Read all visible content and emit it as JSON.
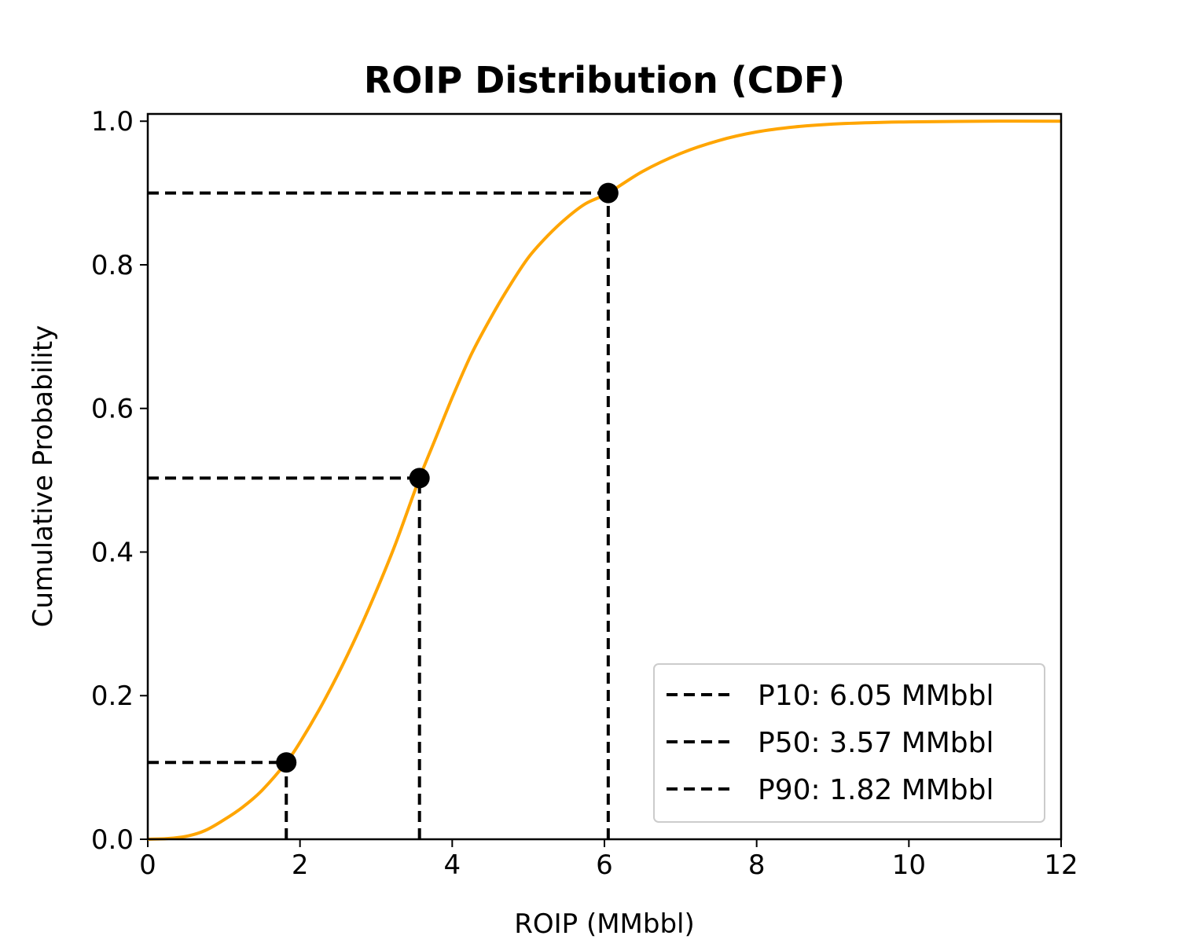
{
  "chart_data": {
    "type": "line",
    "title": "ROIP Distribution (CDF)",
    "xlabel": "ROIP (MMbbl)",
    "ylabel": "Cumulative Probability",
    "xlim": [
      0,
      12
    ],
    "ylim": [
      0,
      1
    ],
    "xticks": [
      0,
      2,
      4,
      6,
      8,
      10,
      12
    ],
    "yticks": [
      0.0,
      0.2,
      0.4,
      0.6,
      0.8,
      1.0
    ],
    "xtick_labels": [
      "0",
      "2",
      "4",
      "6",
      "8",
      "10",
      "12"
    ],
    "ytick_labels": [
      "0.0",
      "0.2",
      "0.4",
      "0.6",
      "0.8",
      "1.0"
    ],
    "grid": false,
    "legend_position": "lower-right",
    "line_color": "#ffa500",
    "guide_color": "#000000",
    "cdf": {
      "x": [
        0,
        0.25,
        0.5,
        0.75,
        1.0,
        1.25,
        1.5,
        1.82,
        2.0,
        2.25,
        2.5,
        2.75,
        3.0,
        3.25,
        3.57,
        3.75,
        4.0,
        4.25,
        4.5,
        4.75,
        5.0,
        5.25,
        5.5,
        5.75,
        6.05,
        6.5,
        7.0,
        7.5,
        8.0,
        8.5,
        9.0,
        9.5,
        10.0,
        11.0,
        12.0
      ],
      "y": [
        0.0,
        0.001,
        0.004,
        0.012,
        0.027,
        0.045,
        0.068,
        0.107,
        0.135,
        0.18,
        0.23,
        0.285,
        0.345,
        0.41,
        0.503,
        0.55,
        0.615,
        0.675,
        0.725,
        0.77,
        0.81,
        0.84,
        0.865,
        0.885,
        0.9,
        0.93,
        0.955,
        0.973,
        0.985,
        0.992,
        0.996,
        0.998,
        0.999,
        1.0,
        1.0
      ]
    },
    "markers": [
      {
        "label": "P10: 6.05 MMbbl",
        "x": 6.05,
        "y": 0.9
      },
      {
        "label": "P50: 3.57 MMbbl",
        "x": 3.57,
        "y": 0.503
      },
      {
        "label": "P90: 1.82 MMbbl",
        "x": 1.82,
        "y": 0.107
      }
    ]
  }
}
